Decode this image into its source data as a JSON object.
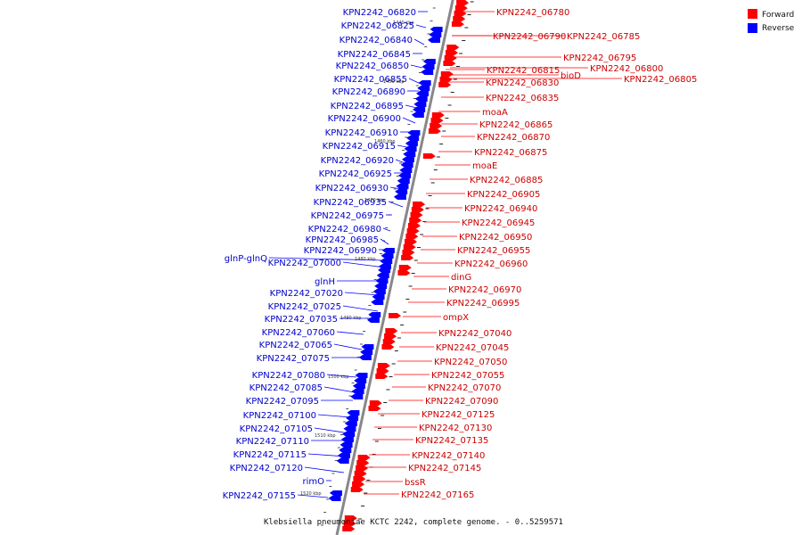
{
  "caption": "Klebsiella pneumoniae KCTC 2242, complete genome. - 0..5259571",
  "legend": [
    {
      "label": "Forward",
      "color": "#ff0000"
    },
    {
      "label": "Reverse",
      "color": "#0000ff"
    }
  ],
  "colors": {
    "forward": "#ff0000",
    "reverse": "#0000ff",
    "axis": "#808080"
  },
  "kbp_labels": [
    "1440 kbp",
    "1450 kbp",
    "1460 kbp",
    "1470 kbp",
    "1480 kbp",
    "1490 kbp",
    "1500 kbp",
    "1510 kbp",
    "1520 kbp"
  ],
  "forward_labels": [
    "KPN2242_06780",
    "KPN2242_06790",
    "KPN2242_06785",
    "KPN2242_06795",
    "KPN2242_06815",
    "KPN2242_06800",
    "bioD",
    "KPN2242_06805",
    "KPN2242_06830",
    "KPN2242_06835",
    "moaA",
    "KPN2242_06865",
    "KPN2242_06870",
    "KPN2242_06875",
    "moaE",
    "KPN2242_06885",
    "KPN2242_06905",
    "KPN2242_06940",
    "KPN2242_06945",
    "KPN2242_06950",
    "KPN2242_06955",
    "KPN2242_06960",
    "dinG",
    "KPN2242_06970",
    "KPN2242_06995",
    "ompX",
    "KPN2242_07040",
    "KPN2242_07045",
    "KPN2242_07050",
    "KPN2242_07055",
    "KPN2242_07070",
    "KPN2242_07090",
    "KPN2242_07125",
    "KPN2242_07130",
    "KPN2242_07135",
    "KPN2242_07140",
    "KPN2242_07145",
    "bssR",
    "KPN2242_07165"
  ],
  "reverse_labels": [
    "KPN2242_06820",
    "KPN2242_06825",
    "KPN2242_06840",
    "KPN2242_06845",
    "KPN2242_06850",
    "KPN2242_06855",
    "KPN2242_06890",
    "KPN2242_06895",
    "KPN2242_06900",
    "KPN2242_06910",
    "KPN2242_06915",
    "KPN2242_06920",
    "KPN2242_06925",
    "KPN2242_06930",
    "KPN2242_06935",
    "KPN2242_06975",
    "KPN2242_06980",
    "KPN2242_06985",
    "KPN2242_06990",
    "glnP-glnQ",
    "KPN2242_07000",
    "glnH",
    "KPN2242_07020",
    "KPN2242_07025",
    "KPN2242_07035",
    "KPN2242_07060",
    "KPN2242_07065",
    "KPN2242_07075",
    "KPN2242_07080",
    "KPN2242_07085",
    "KPN2242_07095",
    "KPN2242_07100",
    "KPN2242_07105",
    "KPN2242_07110",
    "KPN2242_07115",
    "KPN2242_07120",
    "rimO",
    "KPN2242_07155"
  ]
}
